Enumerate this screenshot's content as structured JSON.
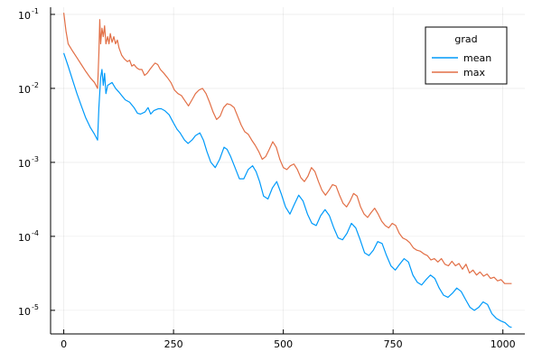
{
  "chart_data": {
    "type": "line",
    "title": "",
    "xlabel": "",
    "ylabel": "",
    "yscale": "log10",
    "xlim": [
      -30,
      1050
    ],
    "ylim": [
      4.8e-06,
      0.125
    ],
    "grid": true,
    "legend": {
      "title": "grad",
      "placement": "top-right"
    },
    "x_ticks": [
      0,
      250,
      500,
      750,
      1000
    ],
    "x_tick_labels": [
      "0",
      "250",
      "500",
      "750",
      "1000"
    ],
    "y_ticks": [
      1e-05,
      0.0001,
      0.001,
      0.01,
      0.1
    ],
    "y_tick_labels": [
      {
        "base": "10",
        "exp": "-5"
      },
      {
        "base": "10",
        "exp": "-4"
      },
      {
        "base": "10",
        "exp": "-3"
      },
      {
        "base": "10",
        "exp": "-2"
      },
      {
        "base": "10",
        "exp": "-1"
      }
    ],
    "series": [
      {
        "name": "mean",
        "color": "#009AFA",
        "points": [
          [
            0,
            0.03
          ],
          [
            10,
            0.02
          ],
          [
            20,
            0.013
          ],
          [
            30,
            0.0085
          ],
          [
            40,
            0.0058
          ],
          [
            50,
            0.004
          ],
          [
            60,
            0.003
          ],
          [
            70,
            0.0024
          ],
          [
            77,
            0.002
          ],
          [
            80,
            0.0055
          ],
          [
            84,
            0.014
          ],
          [
            87,
            0.018
          ],
          [
            90,
            0.011
          ],
          [
            93,
            0.016
          ],
          [
            96,
            0.0085
          ],
          [
            100,
            0.011
          ],
          [
            105,
            0.0115
          ],
          [
            110,
            0.012
          ],
          [
            118,
            0.01
          ],
          [
            125,
            0.009
          ],
          [
            132,
            0.008
          ],
          [
            140,
            0.007
          ],
          [
            150,
            0.0065
          ],
          [
            160,
            0.0055
          ],
          [
            168,
            0.0046
          ],
          [
            175,
            0.0045
          ],
          [
            185,
            0.0048
          ],
          [
            192,
            0.0055
          ],
          [
            198,
            0.0045
          ],
          [
            205,
            0.005
          ],
          [
            215,
            0.0053
          ],
          [
            222,
            0.0053
          ],
          [
            230,
            0.005
          ],
          [
            240,
            0.0044
          ],
          [
            250,
            0.0034
          ],
          [
            258,
            0.0028
          ],
          [
            265,
            0.0025
          ],
          [
            275,
            0.002
          ],
          [
            283,
            0.0018
          ],
          [
            292,
            0.002
          ],
          [
            300,
            0.0023
          ],
          [
            310,
            0.0025
          ],
          [
            318,
            0.002
          ],
          [
            326,
            0.0014
          ],
          [
            335,
            0.001
          ],
          [
            345,
            0.00085
          ],
          [
            355,
            0.0011
          ],
          [
            365,
            0.0016
          ],
          [
            372,
            0.0015
          ],
          [
            380,
            0.0012
          ],
          [
            390,
            0.00085
          ],
          [
            400,
            0.0006
          ],
          [
            410,
            0.0006
          ],
          [
            420,
            0.0008
          ],
          [
            430,
            0.0009
          ],
          [
            438,
            0.00075
          ],
          [
            446,
            0.00055
          ],
          [
            455,
            0.00035
          ],
          [
            465,
            0.00032
          ],
          [
            475,
            0.00045
          ],
          [
            485,
            0.00055
          ],
          [
            495,
            0.00038
          ],
          [
            505,
            0.00025
          ],
          [
            515,
            0.0002
          ],
          [
            525,
            0.00027
          ],
          [
            535,
            0.00036
          ],
          [
            545,
            0.0003
          ],
          [
            555,
            0.0002
          ],
          [
            565,
            0.00015
          ],
          [
            575,
            0.00014
          ],
          [
            585,
            0.00019
          ],
          [
            595,
            0.00023
          ],
          [
            605,
            0.00019
          ],
          [
            615,
            0.00013
          ],
          [
            625,
            9.5e-05
          ],
          [
            635,
            9e-05
          ],
          [
            645,
            0.00011
          ],
          [
            655,
            0.00015
          ],
          [
            665,
            0.00013
          ],
          [
            675,
            9e-05
          ],
          [
            685,
            6e-05
          ],
          [
            695,
            5.5e-05
          ],
          [
            705,
            6.5e-05
          ],
          [
            715,
            8.5e-05
          ],
          [
            725,
            8e-05
          ],
          [
            735,
            5.5e-05
          ],
          [
            745,
            4e-05
          ],
          [
            755,
            3.5e-05
          ],
          [
            765,
            4.2e-05
          ],
          [
            775,
            5e-05
          ],
          [
            785,
            4.5e-05
          ],
          [
            795,
            3e-05
          ],
          [
            805,
            2.4e-05
          ],
          [
            815,
            2.2e-05
          ],
          [
            825,
            2.6e-05
          ],
          [
            835,
            3e-05
          ],
          [
            845,
            2.7e-05
          ],
          [
            855,
            2e-05
          ],
          [
            865,
            1.6e-05
          ],
          [
            875,
            1.5e-05
          ],
          [
            885,
            1.7e-05
          ],
          [
            895,
            2e-05
          ],
          [
            905,
            1.8e-05
          ],
          [
            915,
            1.4e-05
          ],
          [
            925,
            1.1e-05
          ],
          [
            935,
            1e-05
          ],
          [
            945,
            1.1e-05
          ],
          [
            955,
            1.3e-05
          ],
          [
            965,
            1.2e-05
          ],
          [
            975,
            9e-06
          ],
          [
            985,
            7.8e-06
          ],
          [
            995,
            7.2e-06
          ],
          [
            1005,
            6.8e-06
          ],
          [
            1015,
            6e-06
          ],
          [
            1020,
            5.9e-06
          ]
        ]
      },
      {
        "name": "max",
        "color": "#E26F46",
        "points": [
          [
            0,
            0.105
          ],
          [
            5,
            0.06
          ],
          [
            10,
            0.04
          ],
          [
            20,
            0.032
          ],
          [
            30,
            0.026
          ],
          [
            40,
            0.021
          ],
          [
            50,
            0.017
          ],
          [
            60,
            0.014
          ],
          [
            70,
            0.012
          ],
          [
            77,
            0.01
          ],
          [
            80,
            0.03
          ],
          [
            82,
            0.085
          ],
          [
            84,
            0.04
          ],
          [
            87,
            0.065
          ],
          [
            90,
            0.05
          ],
          [
            93,
            0.07
          ],
          [
            96,
            0.04
          ],
          [
            100,
            0.05
          ],
          [
            103,
            0.04
          ],
          [
            106,
            0.055
          ],
          [
            110,
            0.042
          ],
          [
            114,
            0.05
          ],
          [
            118,
            0.04
          ],
          [
            122,
            0.045
          ],
          [
            126,
            0.035
          ],
          [
            132,
            0.028
          ],
          [
            138,
            0.025
          ],
          [
            145,
            0.023
          ],
          [
            150,
            0.024
          ],
          [
            155,
            0.02
          ],
          [
            160,
            0.021
          ],
          [
            166,
            0.019
          ],
          [
            172,
            0.018
          ],
          [
            178,
            0.018
          ],
          [
            184,
            0.015
          ],
          [
            190,
            0.016
          ],
          [
            196,
            0.018
          ],
          [
            202,
            0.02
          ],
          [
            208,
            0.022
          ],
          [
            214,
            0.021
          ],
          [
            220,
            0.018
          ],
          [
            228,
            0.016
          ],
          [
            236,
            0.014
          ],
          [
            244,
            0.012
          ],
          [
            252,
            0.0095
          ],
          [
            260,
            0.0085
          ],
          [
            268,
            0.008
          ],
          [
            276,
            0.0068
          ],
          [
            284,
            0.0058
          ],
          [
            292,
            0.007
          ],
          [
            300,
            0.0085
          ],
          [
            308,
            0.0095
          ],
          [
            316,
            0.01
          ],
          [
            324,
            0.0085
          ],
          [
            332,
            0.0065
          ],
          [
            340,
            0.0048
          ],
          [
            348,
            0.0038
          ],
          [
            356,
            0.0042
          ],
          [
            364,
            0.0055
          ],
          [
            372,
            0.0062
          ],
          [
            380,
            0.006
          ],
          [
            388,
            0.0055
          ],
          [
            396,
            0.0042
          ],
          [
            404,
            0.0032
          ],
          [
            412,
            0.0026
          ],
          [
            420,
            0.0024
          ],
          [
            428,
            0.002
          ],
          [
            436,
            0.0017
          ],
          [
            444,
            0.0014
          ],
          [
            452,
            0.0011
          ],
          [
            460,
            0.0012
          ],
          [
            468,
            0.0015
          ],
          [
            476,
            0.0019
          ],
          [
            484,
            0.0016
          ],
          [
            492,
            0.0011
          ],
          [
            500,
            0.00085
          ],
          [
            508,
            0.0008
          ],
          [
            516,
            0.0009
          ],
          [
            524,
            0.00095
          ],
          [
            532,
            0.0008
          ],
          [
            540,
            0.00062
          ],
          [
            548,
            0.00055
          ],
          [
            556,
            0.00065
          ],
          [
            564,
            0.00085
          ],
          [
            572,
            0.00075
          ],
          [
            580,
            0.00055
          ],
          [
            588,
            0.00042
          ],
          [
            596,
            0.00036
          ],
          [
            604,
            0.00042
          ],
          [
            612,
            0.0005
          ],
          [
            620,
            0.00048
          ],
          [
            628,
            0.00036
          ],
          [
            636,
            0.00028
          ],
          [
            644,
            0.00025
          ],
          [
            652,
            0.0003
          ],
          [
            660,
            0.00038
          ],
          [
            668,
            0.00035
          ],
          [
            676,
            0.00025
          ],
          [
            684,
            0.0002
          ],
          [
            692,
            0.00018
          ],
          [
            700,
            0.00021
          ],
          [
            708,
            0.00024
          ],
          [
            716,
            0.0002
          ],
          [
            724,
            0.00016
          ],
          [
            732,
            0.00014
          ],
          [
            740,
            0.00013
          ],
          [
            748,
            0.00015
          ],
          [
            756,
            0.00014
          ],
          [
            764,
            0.00011
          ],
          [
            772,
            9.5e-05
          ],
          [
            780,
            9e-05
          ],
          [
            788,
            8.2e-05
          ],
          [
            796,
            7e-05
          ],
          [
            804,
            6.5e-05
          ],
          [
            812,
            6.3e-05
          ],
          [
            820,
            5.8e-05
          ],
          [
            828,
            5.5e-05
          ],
          [
            836,
            4.8e-05
          ],
          [
            844,
            5e-05
          ],
          [
            852,
            4.5e-05
          ],
          [
            860,
            5e-05
          ],
          [
            868,
            4.2e-05
          ],
          [
            876,
            4e-05
          ],
          [
            884,
            4.6e-05
          ],
          [
            892,
            4e-05
          ],
          [
            900,
            4.3e-05
          ],
          [
            908,
            3.6e-05
          ],
          [
            916,
            4.2e-05
          ],
          [
            924,
            3.2e-05
          ],
          [
            932,
            3.5e-05
          ],
          [
            940,
            3e-05
          ],
          [
            948,
            3.3e-05
          ],
          [
            956,
            2.9e-05
          ],
          [
            964,
            3.1e-05
          ],
          [
            972,
            2.7e-05
          ],
          [
            980,
            2.8e-05
          ],
          [
            988,
            2.5e-05
          ],
          [
            996,
            2.6e-05
          ],
          [
            1004,
            2.3e-05
          ],
          [
            1012,
            2.3e-05
          ],
          [
            1020,
            2.3e-05
          ]
        ]
      }
    ]
  }
}
